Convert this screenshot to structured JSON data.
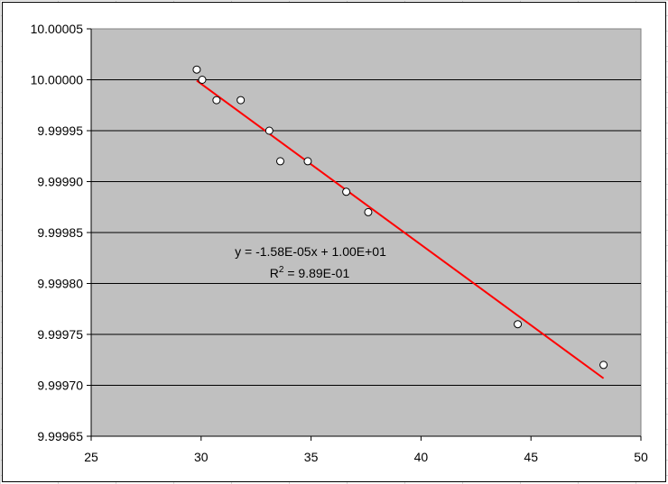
{
  "chart_data": {
    "type": "scatter",
    "title": "",
    "xlabel": "",
    "ylabel": "",
    "xlim": [
      25,
      50
    ],
    "ylim": [
      9.99965,
      10.00005
    ],
    "x_ticks": [
      "25",
      "30",
      "35",
      "40",
      "45",
      "50"
    ],
    "y_ticks": [
      "9.99965",
      "9.99970",
      "9.99975",
      "9.99980",
      "9.99985",
      "9.99990",
      "9.99995",
      "10.00000",
      "10.00005"
    ],
    "x_tick_values": [
      25,
      30,
      35,
      40,
      45,
      50
    ],
    "y_tick_values": [
      9.99965,
      9.9997,
      9.99975,
      9.9998,
      9.99985,
      9.9999,
      9.99995,
      10.0,
      10.00005
    ],
    "grid": "horizontal",
    "legend": "none",
    "points": [
      {
        "x": 29.8,
        "y": 10.00001
      },
      {
        "x": 30.05,
        "y": 10.0
      },
      {
        "x": 30.7,
        "y": 9.99998
      },
      {
        "x": 31.8,
        "y": 9.99998
      },
      {
        "x": 33.1,
        "y": 9.99995
      },
      {
        "x": 33.6,
        "y": 9.99992
      },
      {
        "x": 34.85,
        "y": 9.99992
      },
      {
        "x": 36.6,
        "y": 9.99989
      },
      {
        "x": 37.6,
        "y": 9.99987
      },
      {
        "x": 44.4,
        "y": 9.99976
      },
      {
        "x": 48.3,
        "y": 9.99972
      }
    ],
    "trendline": {
      "type": "linear",
      "x_range": [
        29.8,
        48.3
      ],
      "slope": -1.58e-05,
      "intercept": 10.00047,
      "equation_label": "y = -1.58E-05x + 1.00E+01",
      "r2_prefix": "R",
      "r2_sup": "2",
      "r2_suffix": " = 9.89E-01"
    },
    "colors": {
      "plot_background": "#c0c0c0",
      "gridline": "#000000",
      "trendline": "#ff0000",
      "marker_fill": "#ffffff",
      "marker_stroke": "#000000"
    }
  }
}
